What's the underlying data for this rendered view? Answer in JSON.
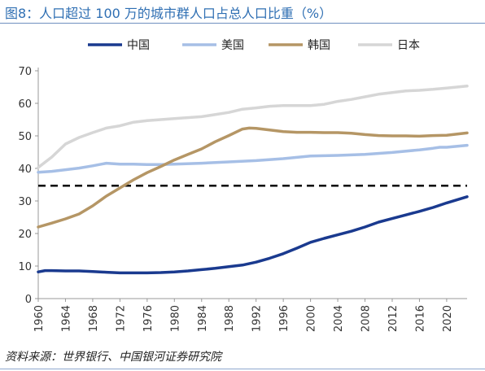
{
  "title": "图8：人口超过 100 万的城市群人口占总人口比重（%）",
  "source": "资料来源：世界银行、中国银河证券研究院",
  "chart_data": {
    "type": "line",
    "title": "图8：人口超过 100 万的城市群人口占总人口比重（%）",
    "xlabel": "",
    "ylabel": "",
    "xlim": [
      1960,
      2023
    ],
    "ylim": [
      0,
      70
    ],
    "yticks": [
      0,
      10,
      20,
      30,
      40,
      50,
      60,
      70
    ],
    "xticks": [
      1960,
      1964,
      1968,
      1972,
      1976,
      1980,
      1984,
      1988,
      1992,
      1996,
      2000,
      2004,
      2008,
      2012,
      2016,
      2020
    ],
    "legend_position": "top",
    "grid": false,
    "series": [
      {
        "name": "中国",
        "color": "#1a3a8f",
        "x": [
          1960,
          1961,
          1962,
          1964,
          1966,
          1968,
          1970,
          1972,
          1974,
          1976,
          1978,
          1980,
          1982,
          1984,
          1986,
          1988,
          1990,
          1992,
          1994,
          1996,
          1998,
          2000,
          2002,
          2004,
          2006,
          2008,
          2010,
          2012,
          2014,
          2016,
          2018,
          2020,
          2023
        ],
        "y": [
          8.2,
          8.6,
          8.6,
          8.5,
          8.5,
          8.3,
          8.1,
          7.9,
          7.9,
          7.9,
          8.0,
          8.2,
          8.5,
          8.9,
          9.3,
          9.8,
          10.3,
          11.2,
          12.4,
          13.8,
          15.5,
          17.3,
          18.5,
          19.6,
          20.7,
          22.0,
          23.5,
          24.6,
          25.7,
          26.8,
          28.0,
          29.4,
          31.3
        ]
      },
      {
        "name": "美国",
        "color": "#a6bfe6",
        "x": [
          1960,
          1962,
          1964,
          1966,
          1968,
          1970,
          1972,
          1974,
          1976,
          1978,
          1980,
          1984,
          1988,
          1992,
          1996,
          2000,
          2004,
          2008,
          2012,
          2016,
          2018,
          2019,
          2020,
          2023
        ],
        "y": [
          38.8,
          39.1,
          39.6,
          40.1,
          40.8,
          41.6,
          41.3,
          41.3,
          41.2,
          41.2,
          41.3,
          41.6,
          42.0,
          42.4,
          43.0,
          43.8,
          44.0,
          44.3,
          44.9,
          45.7,
          46.2,
          46.5,
          46.5,
          47.1
        ]
      },
      {
        "name": "韩国",
        "color": "#b59665",
        "x": [
          1960,
          1962,
          1964,
          1966,
          1968,
          1970,
          1972,
          1974,
          1976,
          1978,
          1980,
          1982,
          1984,
          1986,
          1988,
          1990,
          1991,
          1992,
          1994,
          1996,
          1998,
          2000,
          2002,
          2004,
          2006,
          2008,
          2010,
          2012,
          2014,
          2016,
          2018,
          2020,
          2023
        ],
        "y": [
          22.0,
          23.2,
          24.5,
          26.0,
          28.5,
          31.5,
          34.0,
          36.5,
          38.7,
          40.6,
          42.6,
          44.3,
          46.0,
          48.2,
          50.1,
          52.1,
          52.4,
          52.3,
          51.8,
          51.3,
          51.1,
          51.1,
          51.0,
          51.0,
          50.8,
          50.4,
          50.1,
          50.0,
          50.0,
          49.9,
          50.1,
          50.2,
          50.9
        ]
      },
      {
        "name": "日本",
        "color": "#d6d6d6",
        "x": [
          1960,
          1962,
          1964,
          1966,
          1968,
          1970,
          1972,
          1974,
          1976,
          1978,
          1980,
          1984,
          1988,
          1990,
          1992,
          1994,
          1996,
          1998,
          2000,
          2002,
          2004,
          2006,
          2008,
          2010,
          2012,
          2014,
          2016,
          2018,
          2020,
          2023
        ],
        "y": [
          40.3,
          43.5,
          47.5,
          49.5,
          51.0,
          52.4,
          53.1,
          54.2,
          54.7,
          55.0,
          55.3,
          55.9,
          57.2,
          58.2,
          58.6,
          59.1,
          59.3,
          59.3,
          59.3,
          59.7,
          60.6,
          61.2,
          62.0,
          62.8,
          63.3,
          63.8,
          64.0,
          64.3,
          64.7,
          65.3
        ]
      }
    ],
    "reference_line": {
      "y": 34.7,
      "x_range": [
        1960,
        2023
      ],
      "style": "dashed",
      "color": "#000000"
    }
  }
}
